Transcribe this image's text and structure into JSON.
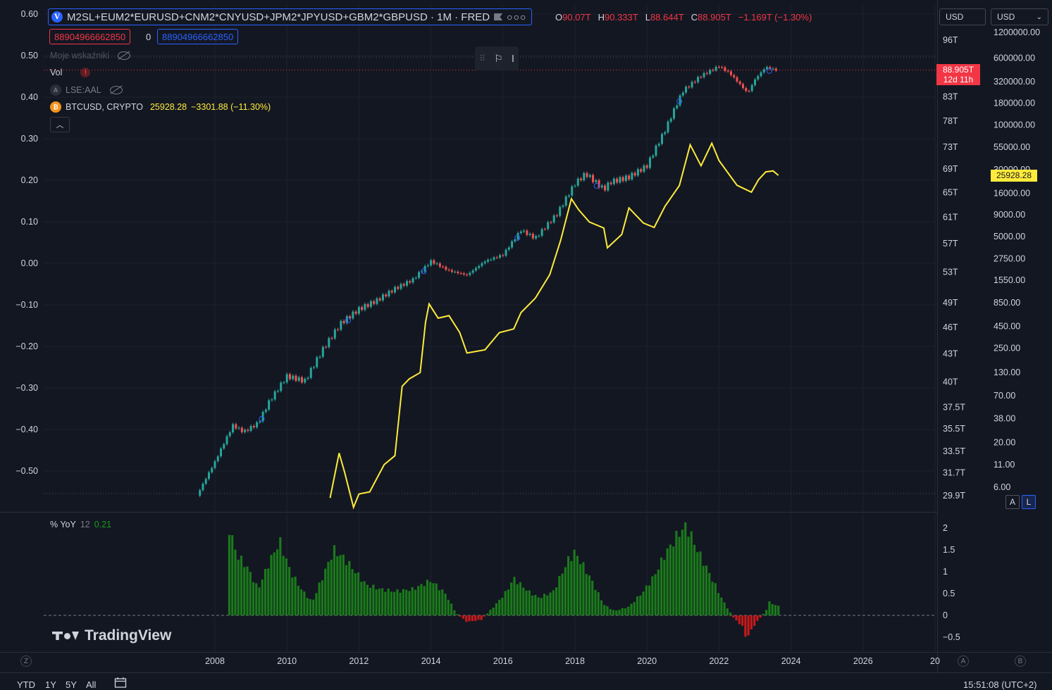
{
  "header": {
    "symbol_title": "M2SL+EUM2*EURUSD+CNM2*CNYUSD+JPM2*JPYUSD+GBM2*GBPUSD · 1M · FRED",
    "ohlc": {
      "o_label": "O",
      "o": "90.07T",
      "h_label": "H",
      "h": "90.333T",
      "l_label": "L",
      "l": "88.644T",
      "c_label": "C",
      "c": "88.905T",
      "change": "−1.169T (−1.30%)"
    },
    "input_left": "88904966662850",
    "input_mid": "0",
    "input_right": "88904966662850"
  },
  "indicators": {
    "moje": "Moje wskaźniki",
    "vol": "Vol",
    "aal": "LSE:AAL",
    "btc_name": "BTCUSD, CRYPTO",
    "btc_value": "25928.28",
    "btc_change": "−3301.88 (−11.30%)",
    "aal_icon": "A",
    "btc_icon": "₿",
    "warn_icon": "!"
  },
  "currency": {
    "left": "USD",
    "right": "USD"
  },
  "price_tag": {
    "value": "88.905T",
    "countdown": "12d 11h"
  },
  "btc_tag": "25928.28",
  "buttons": {
    "a": "A",
    "l": "L"
  },
  "yoy": {
    "label": "% YoY",
    "period": "12",
    "value": "0.21"
  },
  "brand": "TradingView",
  "bottom": {
    "ytd": "YTD",
    "y1": "1Y",
    "y5": "5Y",
    "all": "All",
    "time": "15:51:08 (UTC+2)",
    "z": "Z",
    "a": "A",
    "b": "B"
  },
  "colors": {
    "bg": "#131722",
    "up": "#26a69a",
    "down": "#ef5350",
    "btc": "#ffeb3b",
    "hist_up": "#1b7a1b",
    "hist_down": "#c41a1a",
    "grid": "#1e222d"
  },
  "chart_data": [
    {
      "type": "candlestick",
      "title": "M2SL+EUM2*EURUSD+CNM2*CNYUSD+JPM2*JPYUSD+GBM2*GBPUSD · 1M · FRED",
      "x_labels": [
        "2008",
        "2010",
        "2012",
        "2014",
        "2016",
        "2018",
        "2020",
        "2022",
        "2024",
        "2026",
        "20"
      ],
      "y_left_ticks": [
        "0.60",
        "0.50",
        "0.40",
        "0.30",
        "0.20",
        "0.10",
        "0.00",
        "−0.10",
        "−0.20",
        "−0.30",
        "−0.40",
        "−0.50"
      ],
      "y_right_ticks": [
        "96T",
        "83T",
        "78T",
        "73T",
        "69T",
        "65T",
        "61T",
        "57T",
        "53T",
        "49T",
        "46T",
        "43T",
        "40T",
        "37.5T",
        "35.5T",
        "33.5T",
        "31.7T",
        "29.9T"
      ],
      "y_right_values": [
        96,
        83,
        78,
        73,
        69,
        65,
        61,
        57,
        53,
        49,
        46,
        43,
        40,
        37.5,
        35.5,
        33.5,
        31.7,
        29.9
      ],
      "series_monthly_trillions": [
        {
          "date": 2007.5,
          "value": 29.9
        },
        {
          "date": 2008.0,
          "value": 32.6
        },
        {
          "date": 2008.5,
          "value": 35.8
        },
        {
          "date": 2008.8,
          "value": 35.2
        },
        {
          "date": 2009.2,
          "value": 36.0
        },
        {
          "date": 2009.5,
          "value": 38.0
        },
        {
          "date": 2010.0,
          "value": 40.6
        },
        {
          "date": 2010.5,
          "value": 40.1
        },
        {
          "date": 2011.0,
          "value": 43.5
        },
        {
          "date": 2011.5,
          "value": 46.5
        },
        {
          "date": 2012.0,
          "value": 48.2
        },
        {
          "date": 2012.5,
          "value": 49.3
        },
        {
          "date": 2013.0,
          "value": 50.8
        },
        {
          "date": 2013.5,
          "value": 52.0
        },
        {
          "date": 2014.0,
          "value": 54.5
        },
        {
          "date": 2014.5,
          "value": 53.2
        },
        {
          "date": 2015.0,
          "value": 52.6
        },
        {
          "date": 2015.5,
          "value": 54.5
        },
        {
          "date": 2016.0,
          "value": 55.4
        },
        {
          "date": 2016.5,
          "value": 59.0
        },
        {
          "date": 2016.9,
          "value": 57.8
        },
        {
          "date": 2017.5,
          "value": 61.5
        },
        {
          "date": 2018.0,
          "value": 66.5
        },
        {
          "date": 2018.3,
          "value": 68.2
        },
        {
          "date": 2018.8,
          "value": 65.5
        },
        {
          "date": 2019.0,
          "value": 66.8
        },
        {
          "date": 2019.5,
          "value": 67.6
        },
        {
          "date": 2020.0,
          "value": 69.6
        },
        {
          "date": 2020.5,
          "value": 76.2
        },
        {
          "date": 2021.0,
          "value": 84.3
        },
        {
          "date": 2021.5,
          "value": 87.6
        },
        {
          "date": 2022.0,
          "value": 89.8
        },
        {
          "date": 2022.3,
          "value": 88.2
        },
        {
          "date": 2022.8,
          "value": 83.8
        },
        {
          "date": 2023.0,
          "value": 86.8
        },
        {
          "date": 2023.3,
          "value": 89.6
        },
        {
          "date": 2023.6,
          "value": 88.9
        }
      ]
    },
    {
      "type": "line",
      "name": "BTCUSD, CRYPTO",
      "log_scale": true,
      "y_ticks": [
        "1200000.00",
        "600000.00",
        "320000.00",
        "180000.00",
        "100000.00",
        "55000.00",
        "30000.00",
        "16000.00",
        "9000.00",
        "5000.00",
        "2750.00",
        "1550.00",
        "850.00",
        "450.00",
        "250.00",
        "130.00",
        "70.00",
        "38.00",
        "20.00",
        "11.00",
        "6.00"
      ],
      "y_values": [
        1200000,
        600000,
        320000,
        180000,
        100000,
        55000,
        30000,
        16000,
        9000,
        5000,
        2750,
        1550,
        850,
        450,
        250,
        130,
        70,
        38,
        20,
        11,
        6
      ],
      "points": [
        {
          "date": 2011.2,
          "value": 4.5
        },
        {
          "date": 2011.45,
          "value": 15
        },
        {
          "date": 2011.6,
          "value": 9
        },
        {
          "date": 2011.85,
          "value": 3.5
        },
        {
          "date": 2012.0,
          "value": 5
        },
        {
          "date": 2012.3,
          "value": 5.3
        },
        {
          "date": 2012.7,
          "value": 11
        },
        {
          "date": 2013.0,
          "value": 14
        },
        {
          "date": 2013.2,
          "value": 90
        },
        {
          "date": 2013.4,
          "value": 110
        },
        {
          "date": 2013.7,
          "value": 130
        },
        {
          "date": 2013.85,
          "value": 500
        },
        {
          "date": 2013.95,
          "value": 820
        },
        {
          "date": 2014.2,
          "value": 560
        },
        {
          "date": 2014.5,
          "value": 600
        },
        {
          "date": 2014.8,
          "value": 380
        },
        {
          "date": 2015.0,
          "value": 220
        },
        {
          "date": 2015.5,
          "value": 240
        },
        {
          "date": 2015.9,
          "value": 380
        },
        {
          "date": 2016.3,
          "value": 420
        },
        {
          "date": 2016.5,
          "value": 650
        },
        {
          "date": 2016.9,
          "value": 960
        },
        {
          "date": 2017.3,
          "value": 1800
        },
        {
          "date": 2017.6,
          "value": 4500
        },
        {
          "date": 2017.9,
          "value": 13800
        },
        {
          "date": 2018.1,
          "value": 10300
        },
        {
          "date": 2018.4,
          "value": 7400
        },
        {
          "date": 2018.8,
          "value": 6300
        },
        {
          "date": 2018.9,
          "value": 3700
        },
        {
          "date": 2019.3,
          "value": 5300
        },
        {
          "date": 2019.5,
          "value": 10800
        },
        {
          "date": 2019.9,
          "value": 7200
        },
        {
          "date": 2020.2,
          "value": 6400
        },
        {
          "date": 2020.5,
          "value": 11300
        },
        {
          "date": 2020.9,
          "value": 19700
        },
        {
          "date": 2021.2,
          "value": 58800
        },
        {
          "date": 2021.5,
          "value": 33500
        },
        {
          "date": 2021.8,
          "value": 61300
        },
        {
          "date": 2022.0,
          "value": 38500
        },
        {
          "date": 2022.5,
          "value": 19800
        },
        {
          "date": 2022.9,
          "value": 16500
        },
        {
          "date": 2023.1,
          "value": 23100
        },
        {
          "date": 2023.3,
          "value": 28400
        },
        {
          "date": 2023.5,
          "value": 29200
        },
        {
          "date": 2023.65,
          "value": 25928
        }
      ]
    },
    {
      "type": "bar",
      "name": "% YoY 12",
      "y_ticks": [
        "2",
        "1.5",
        "1",
        "0.5",
        "0",
        "−0.5"
      ],
      "y_values": [
        2,
        1.5,
        1,
        0.5,
        0,
        -0.5
      ],
      "points": [
        {
          "date": 2008.4,
          "value": 2.0
        },
        {
          "date": 2008.6,
          "value": 1.4
        },
        {
          "date": 2008.9,
          "value": 1.1
        },
        {
          "date": 2009.2,
          "value": 0.6
        },
        {
          "date": 2009.5,
          "value": 1.2
        },
        {
          "date": 2009.8,
          "value": 1.7
        },
        {
          "date": 2010.1,
          "value": 1.0
        },
        {
          "date": 2010.4,
          "value": 0.6
        },
        {
          "date": 2010.7,
          "value": 0.3
        },
        {
          "date": 2011.0,
          "value": 0.9
        },
        {
          "date": 2011.3,
          "value": 1.5
        },
        {
          "date": 2011.6,
          "value": 1.3
        },
        {
          "date": 2011.9,
          "value": 1.0
        },
        {
          "date": 2012.2,
          "value": 0.7
        },
        {
          "date": 2012.6,
          "value": 0.6
        },
        {
          "date": 2013.0,
          "value": 0.55
        },
        {
          "date": 2013.5,
          "value": 0.6
        },
        {
          "date": 2014.0,
          "value": 0.8
        },
        {
          "date": 2014.4,
          "value": 0.5
        },
        {
          "date": 2014.7,
          "value": 0.05
        },
        {
          "date": 2015.0,
          "value": -0.15
        },
        {
          "date": 2015.4,
          "value": -0.1
        },
        {
          "date": 2015.8,
          "value": 0.25
        },
        {
          "date": 2016.1,
          "value": 0.55
        },
        {
          "date": 2016.3,
          "value": 0.85
        },
        {
          "date": 2016.7,
          "value": 0.55
        },
        {
          "date": 2017.0,
          "value": 0.4
        },
        {
          "date": 2017.4,
          "value": 0.55
        },
        {
          "date": 2017.8,
          "value": 1.25
        },
        {
          "date": 2018.0,
          "value": 1.45
        },
        {
          "date": 2018.4,
          "value": 0.9
        },
        {
          "date": 2018.8,
          "value": 0.25
        },
        {
          "date": 2019.1,
          "value": 0.1
        },
        {
          "date": 2019.5,
          "value": 0.2
        },
        {
          "date": 2019.9,
          "value": 0.55
        },
        {
          "date": 2020.2,
          "value": 0.9
        },
        {
          "date": 2020.5,
          "value": 1.4
        },
        {
          "date": 2020.9,
          "value": 1.9
        },
        {
          "date": 2021.1,
          "value": 2.05
        },
        {
          "date": 2021.4,
          "value": 1.5
        },
        {
          "date": 2021.8,
          "value": 0.85
        },
        {
          "date": 2022.1,
          "value": 0.35
        },
        {
          "date": 2022.4,
          "value": -0.05
        },
        {
          "date": 2022.7,
          "value": -0.3
        },
        {
          "date": 2022.75,
          "value": -0.55
        },
        {
          "date": 2023.0,
          "value": -0.2
        },
        {
          "date": 2023.3,
          "value": 0.1
        },
        {
          "date": 2023.4,
          "value": 0.3
        },
        {
          "date": 2023.65,
          "value": 0.21
        }
      ]
    }
  ]
}
